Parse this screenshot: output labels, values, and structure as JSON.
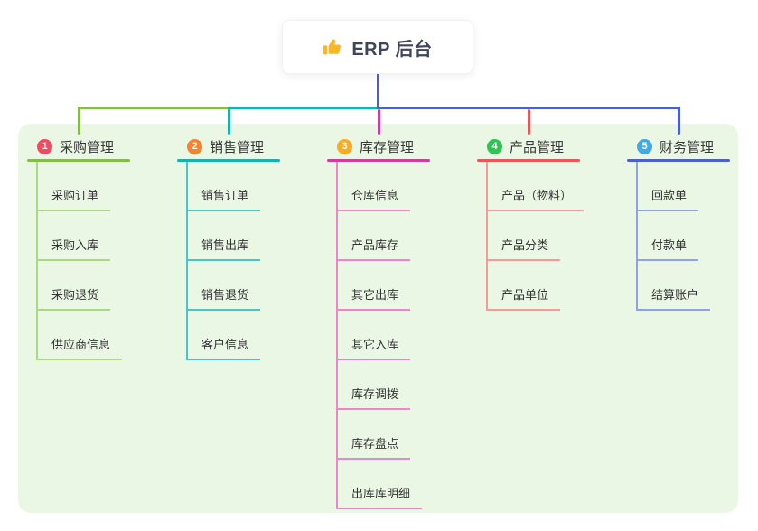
{
  "root": {
    "label": "ERP 后台",
    "icon": "thumbs-up-icon",
    "icon_color": "#f5b928"
  },
  "branches": [
    {
      "number": "1",
      "title": "采购管理",
      "badge_color": "#f5495f",
      "line_color": "#84bd48",
      "light_color": "#aed687",
      "children": [
        "采购订单",
        "采购入库",
        "采购退货",
        "供应商信息"
      ]
    },
    {
      "number": "2",
      "title": "销售管理",
      "badge_color": "#f9822f",
      "line_color": "#14b3ae",
      "light_color": "#4cc5c0",
      "children": [
        "销售订单",
        "销售出库",
        "销售退货",
        "客户信息"
      ]
    },
    {
      "number": "3",
      "title": "库存管理",
      "badge_color": "#fbab1f",
      "line_color": "#d63a9e",
      "light_color": "#ee86c6",
      "children": [
        "仓库信息",
        "产品库存",
        "其它出库",
        "其它入库",
        "库存调拨",
        "库存盘点",
        "出库库明细"
      ]
    },
    {
      "number": "4",
      "title": "产品管理",
      "badge_color": "#2dc653",
      "line_color": "#f05455",
      "light_color": "#f49a9a",
      "children": [
        "产品（物料）",
        "产品分类",
        "产品单位"
      ]
    },
    {
      "number": "5",
      "title": "财务管理",
      "badge_color": "#41a8ea",
      "line_color": "#4a5fd0",
      "light_color": "#8fa2e4",
      "children": [
        "回款单",
        "付款单",
        "结算账户"
      ]
    }
  ],
  "colors": {
    "canvas_bg": "#ffffff",
    "panel_bg": "#ebf7e5",
    "root_text": "#3f4659",
    "title_text": "#383838",
    "child_text": "#333333"
  }
}
